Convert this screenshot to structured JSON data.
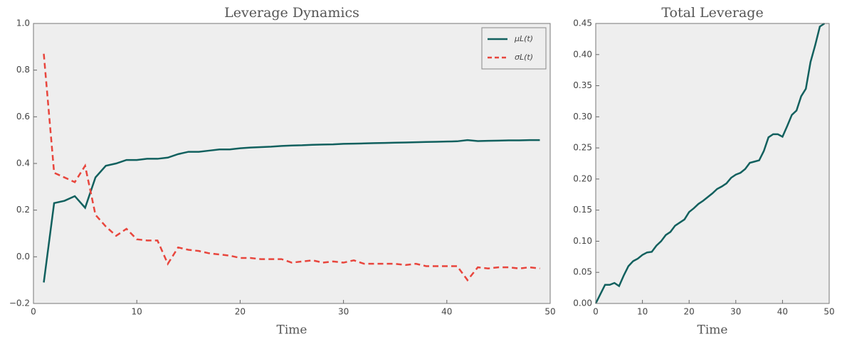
{
  "chart_data": [
    {
      "type": "line",
      "title": "Leverage Dynamics",
      "xlabel": "Time",
      "x": [
        1,
        2,
        3,
        4,
        5,
        6,
        7,
        8,
        9,
        10,
        11,
        12,
        13,
        14,
        15,
        16,
        17,
        18,
        19,
        20,
        21,
        22,
        23,
        24,
        25,
        26,
        27,
        28,
        29,
        30,
        31,
        32,
        33,
        34,
        35,
        36,
        37,
        38,
        39,
        40,
        41,
        42,
        43,
        44,
        45,
        46,
        47,
        48,
        49
      ],
      "series": [
        {
          "name": "μL(t)",
          "color": "#11605e",
          "dash": "solid",
          "values": [
            -0.11,
            0.23,
            0.24,
            0.26,
            0.21,
            0.34,
            0.39,
            0.4,
            0.415,
            0.415,
            0.42,
            0.42,
            0.425,
            0.44,
            0.45,
            0.45,
            0.455,
            0.46,
            0.46,
            0.465,
            0.468,
            0.47,
            0.472,
            0.475,
            0.477,
            0.478,
            0.48,
            0.481,
            0.482,
            0.484,
            0.485,
            0.486,
            0.487,
            0.488,
            0.489,
            0.49,
            0.491,
            0.492,
            0.493,
            0.494,
            0.495,
            0.5,
            0.496,
            0.497,
            0.498,
            0.499,
            0.499,
            0.5,
            0.5
          ]
        },
        {
          "name": "σL(t)",
          "color": "#e8453c",
          "dash": "dashed",
          "values": [
            0.87,
            0.36,
            0.34,
            0.32,
            0.39,
            0.18,
            0.13,
            0.09,
            0.12,
            0.075,
            0.07,
            0.07,
            -0.03,
            0.04,
            0.03,
            0.025,
            0.015,
            0.01,
            0.005,
            -0.005,
            -0.005,
            -0.01,
            -0.01,
            -0.01,
            -0.025,
            -0.02,
            -0.015,
            -0.025,
            -0.02,
            -0.025,
            -0.015,
            -0.03,
            -0.03,
            -0.03,
            -0.03,
            -0.035,
            -0.03,
            -0.04,
            -0.04,
            -0.04,
            -0.04,
            -0.1,
            -0.045,
            -0.05,
            -0.045,
            -0.045,
            -0.05,
            -0.045,
            -0.05
          ]
        }
      ],
      "xlim": [
        0,
        50
      ],
      "xticks": [
        0,
        10,
        20,
        30,
        40,
        50
      ],
      "ylim": [
        -0.2,
        1.0
      ],
      "yticks": [
        {
          "value": -0.2,
          "label": "−0.2"
        },
        {
          "value": 0,
          "label": "0.0"
        },
        {
          "value": 0.2,
          "label": "0.2"
        },
        {
          "value": 0.4,
          "label": "0.4"
        },
        {
          "value": 0.6,
          "label": "0.6"
        },
        {
          "value": 0.8,
          "label": "0.8"
        },
        {
          "value": 1.0,
          "label": "1.0"
        }
      ],
      "legend": "upper right"
    },
    {
      "type": "line",
      "title": "Total Leverage",
      "xlabel": "Time",
      "x": [
        0,
        1,
        2,
        3,
        4,
        5,
        6,
        7,
        8,
        9,
        10,
        11,
        12,
        13,
        14,
        15,
        16,
        17,
        18,
        19,
        20,
        21,
        22,
        23,
        24,
        25,
        26,
        27,
        28,
        29,
        30,
        31,
        32,
        33,
        34,
        35,
        36,
        37,
        38,
        39,
        40,
        41,
        42,
        43,
        44,
        45,
        46,
        47,
        48,
        49
      ],
      "series": [
        {
          "name": "Total Leverage",
          "color": "#11605e",
          "dash": "solid",
          "values": [
            0.0,
            0.015,
            0.03,
            0.03,
            0.033,
            0.028,
            0.045,
            0.06,
            0.068,
            0.072,
            0.078,
            0.082,
            0.083,
            0.093,
            0.1,
            0.11,
            0.115,
            0.125,
            0.13,
            0.135,
            0.147,
            0.153,
            0.16,
            0.165,
            0.171,
            0.177,
            0.184,
            0.188,
            0.193,
            0.202,
            0.207,
            0.21,
            0.216,
            0.226,
            0.228,
            0.23,
            0.245,
            0.267,
            0.272,
            0.272,
            0.268,
            0.285,
            0.303,
            0.31,
            0.333,
            0.345,
            0.388,
            0.415,
            0.445,
            0.45
          ]
        }
      ],
      "xlim": [
        0,
        50
      ],
      "xticks": [
        0,
        10,
        20,
        30,
        40,
        50
      ],
      "ylim": [
        0,
        0.45
      ],
      "yticks": [
        {
          "value": 0,
          "label": "0.00"
        },
        {
          "value": 0.05,
          "label": "0.05"
        },
        {
          "value": 0.1,
          "label": "0.10"
        },
        {
          "value": 0.15,
          "label": "0.15"
        },
        {
          "value": 0.2,
          "label": "0.20"
        },
        {
          "value": 0.25,
          "label": "0.25"
        },
        {
          "value": 0.3,
          "label": "0.30"
        },
        {
          "value": 0.35,
          "label": "0.35"
        },
        {
          "value": 0.4,
          "label": "0.40"
        },
        {
          "value": 0.45,
          "label": "0.45"
        }
      ]
    }
  ]
}
